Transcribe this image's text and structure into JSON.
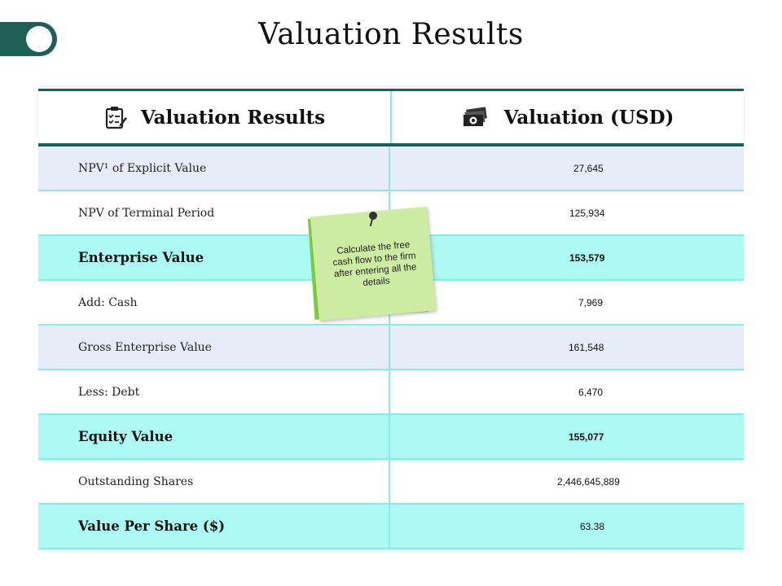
{
  "page": {
    "title": "Valuation Results"
  },
  "table": {
    "headers": {
      "left": {
        "label": "Valuation Results",
        "icon": "clipboard-checklist-icon"
      },
      "right": {
        "label": "Valuation (USD)",
        "icon": "money-stack-icon"
      }
    },
    "rows": [
      {
        "label": "NPV¹ of Explicit Value",
        "value": "27,645",
        "style": "light",
        "bold": false
      },
      {
        "label": "NPV of Terminal Period",
        "value": "125,934",
        "style": "white",
        "bold": false
      },
      {
        "label": "Enterprise Value",
        "value": "153,579",
        "style": "cyan",
        "bold": true
      },
      {
        "label": "Add: Cash",
        "value": "7,969",
        "style": "white",
        "bold": false
      },
      {
        "label": "Gross Enterprise Value",
        "value": "161,548",
        "style": "light",
        "bold": false
      },
      {
        "label": "Less: Debt",
        "value": "6,470",
        "style": "white",
        "bold": false
      },
      {
        "label": "Equity Value",
        "value": "155,077",
        "style": "cyan",
        "bold": true
      },
      {
        "label": "Outstanding Shares",
        "value": "2,446,645,889",
        "style": "white",
        "bold": false
      },
      {
        "label": "Value Per Share ($)",
        "value": "63.38",
        "style": "cyan",
        "bold": true
      }
    ]
  },
  "sticky_note": {
    "text": "Calculate the free cash flow to the firm after entering all the details"
  },
  "colors": {
    "accent": "#1f5f57",
    "row_light": "#e5ecf7",
    "row_highlight": "#acf8f2",
    "divider": "#8ee8e6",
    "note": "#cdeba3"
  }
}
